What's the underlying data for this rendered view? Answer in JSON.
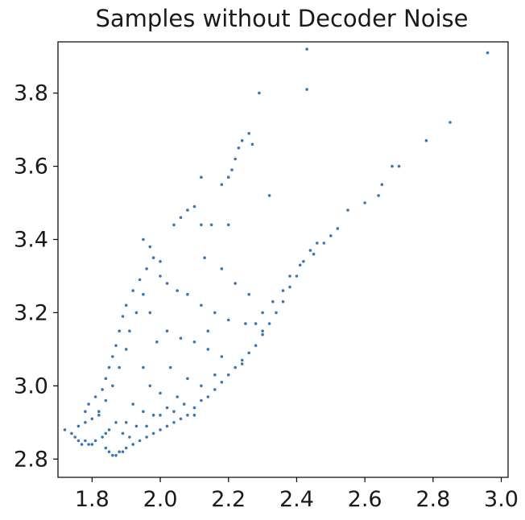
{
  "chart_data": {
    "type": "scatter",
    "title": "Samples without Decoder Noise",
    "xlabel": "",
    "ylabel": "",
    "xlim": [
      1.7,
      3.02
    ],
    "ylim": [
      2.75,
      3.94
    ],
    "xticks": [
      "1.8",
      "2.0",
      "2.2",
      "2.4",
      "2.6",
      "2.8",
      "3.0"
    ],
    "yticks": [
      "2.8",
      "3.0",
      "3.2",
      "3.4",
      "3.6",
      "3.8"
    ],
    "grid": false,
    "legend": "none",
    "marker_color": "#3b76b5",
    "series": [
      {
        "points": [
          [
            1.72,
            2.88
          ],
          [
            1.74,
            2.87
          ],
          [
            1.75,
            2.86
          ],
          [
            1.76,
            2.85
          ],
          [
            1.77,
            2.84
          ],
          [
            1.78,
            2.85
          ],
          [
            1.79,
            2.84
          ],
          [
            1.8,
            2.84
          ],
          [
            1.81,
            2.85
          ],
          [
            1.76,
            2.89
          ],
          [
            1.78,
            2.9
          ],
          [
            1.8,
            2.91
          ],
          [
            1.82,
            2.92
          ],
          [
            1.78,
            2.93
          ],
          [
            1.79,
            2.95
          ],
          [
            1.81,
            2.97
          ],
          [
            1.83,
            2.99
          ],
          [
            1.84,
            3.02
          ],
          [
            1.85,
            3.05
          ],
          [
            1.86,
            3.08
          ],
          [
            1.87,
            3.11
          ],
          [
            1.88,
            3.15
          ],
          [
            1.89,
            3.19
          ],
          [
            1.9,
            3.22
          ],
          [
            1.92,
            3.26
          ],
          [
            1.94,
            3.29
          ],
          [
            1.96,
            3.32
          ],
          [
            1.98,
            3.35
          ],
          [
            2.0,
            3.34
          ],
          [
            1.95,
            3.25
          ],
          [
            1.93,
            3.2
          ],
          [
            1.91,
            3.15
          ],
          [
            1.9,
            3.1
          ],
          [
            1.88,
            3.05
          ],
          [
            1.86,
            3.0
          ],
          [
            1.84,
            2.96
          ],
          [
            1.82,
            2.93
          ],
          [
            1.84,
            2.83
          ],
          [
            1.85,
            2.82
          ],
          [
            1.86,
            2.81
          ],
          [
            1.87,
            2.81
          ],
          [
            1.88,
            2.82
          ],
          [
            1.89,
            2.82
          ],
          [
            1.9,
            2.83
          ],
          [
            1.92,
            2.84
          ],
          [
            1.94,
            2.85
          ],
          [
            1.96,
            2.86
          ],
          [
            1.98,
            2.87
          ],
          [
            2.0,
            2.88
          ],
          [
            2.02,
            2.89
          ],
          [
            2.04,
            2.9
          ],
          [
            2.06,
            2.91
          ],
          [
            2.08,
            2.92
          ],
          [
            2.1,
            2.94
          ],
          [
            2.12,
            2.96
          ],
          [
            2.14,
            2.97
          ],
          [
            2.16,
            2.99
          ],
          [
            2.18,
            3.01
          ],
          [
            2.2,
            3.03
          ],
          [
            2.22,
            3.05
          ],
          [
            2.24,
            3.07
          ],
          [
            2.26,
            3.09
          ],
          [
            2.28,
            3.11
          ],
          [
            2.3,
            3.14
          ],
          [
            2.32,
            3.17
          ],
          [
            2.34,
            3.2
          ],
          [
            2.36,
            3.23
          ],
          [
            2.38,
            3.27
          ],
          [
            2.4,
            3.3
          ],
          [
            2.42,
            3.34
          ],
          [
            2.44,
            3.37
          ],
          [
            2.46,
            3.39
          ],
          [
            2.48,
            3.39
          ],
          [
            2.5,
            3.41
          ],
          [
            2.52,
            3.43
          ],
          [
            2.55,
            3.48
          ],
          [
            2.6,
            3.5
          ],
          [
            2.64,
            3.52
          ],
          [
            2.65,
            3.55
          ],
          [
            2.68,
            3.6
          ],
          [
            2.7,
            3.6
          ],
          [
            2.78,
            3.67
          ],
          [
            2.85,
            3.72
          ],
          [
            2.96,
            3.91
          ],
          [
            2.43,
            3.92
          ],
          [
            2.43,
            3.81
          ],
          [
            2.29,
            3.8
          ],
          [
            2.27,
            3.66
          ],
          [
            2.26,
            3.69
          ],
          [
            2.24,
            3.67
          ],
          [
            2.23,
            3.65
          ],
          [
            2.22,
            3.62
          ],
          [
            2.21,
            3.59
          ],
          [
            2.2,
            3.57
          ],
          [
            2.12,
            3.57
          ],
          [
            2.18,
            3.55
          ],
          [
            2.32,
            3.52
          ],
          [
            2.1,
            3.49
          ],
          [
            2.08,
            3.48
          ],
          [
            2.06,
            3.46
          ],
          [
            2.04,
            3.44
          ],
          [
            2.12,
            3.44
          ],
          [
            2.15,
            3.44
          ],
          [
            2.2,
            3.44
          ],
          [
            2.0,
            3.3
          ],
          [
            2.02,
            3.28
          ],
          [
            2.05,
            3.26
          ],
          [
            2.08,
            3.25
          ],
          [
            2.12,
            3.22
          ],
          [
            2.16,
            3.2
          ],
          [
            2.2,
            3.18
          ],
          [
            2.25,
            3.17
          ],
          [
            2.1,
            3.12
          ],
          [
            2.14,
            3.1
          ],
          [
            2.18,
            3.08
          ],
          [
            2.24,
            3.06
          ],
          [
            2.02,
            3.15
          ],
          [
            2.06,
            3.13
          ],
          [
            1.97,
            3.2
          ],
          [
            1.99,
            3.12
          ],
          [
            2.03,
            3.05
          ],
          [
            2.08,
            3.02
          ],
          [
            2.12,
            3.0
          ],
          [
            2.16,
            3.03
          ],
          [
            1.95,
            3.05
          ],
          [
            1.97,
            3.0
          ],
          [
            2.0,
            2.98
          ],
          [
            2.05,
            2.97
          ],
          [
            2.1,
            2.92
          ],
          [
            1.92,
            2.95
          ],
          [
            1.95,
            2.93
          ],
          [
            1.98,
            2.92
          ],
          [
            2.02,
            2.94
          ],
          [
            1.9,
            2.9
          ],
          [
            1.93,
            2.89
          ],
          [
            1.96,
            2.89
          ],
          [
            1.89,
            2.87
          ],
          [
            1.91,
            2.86
          ],
          [
            2.0,
            2.92
          ],
          [
            2.04,
            2.93
          ],
          [
            2.07,
            2.95
          ],
          [
            2.36,
            3.26
          ],
          [
            2.38,
            3.3
          ],
          [
            2.41,
            3.33
          ],
          [
            2.45,
            3.36
          ],
          [
            2.3,
            3.2
          ],
          [
            2.28,
            3.17
          ],
          [
            2.33,
            3.23
          ],
          [
            1.85,
            2.88
          ],
          [
            1.87,
            2.9
          ],
          [
            1.84,
            2.87
          ],
          [
            1.83,
            2.86
          ],
          [
            1.95,
            3.4
          ],
          [
            1.97,
            3.38
          ],
          [
            2.13,
            3.35
          ],
          [
            2.22,
            3.28
          ],
          [
            2.18,
            3.32
          ],
          [
            2.26,
            3.25
          ],
          [
            2.3,
            3.15
          ],
          [
            2.14,
            3.15
          ]
        ]
      }
    ]
  }
}
